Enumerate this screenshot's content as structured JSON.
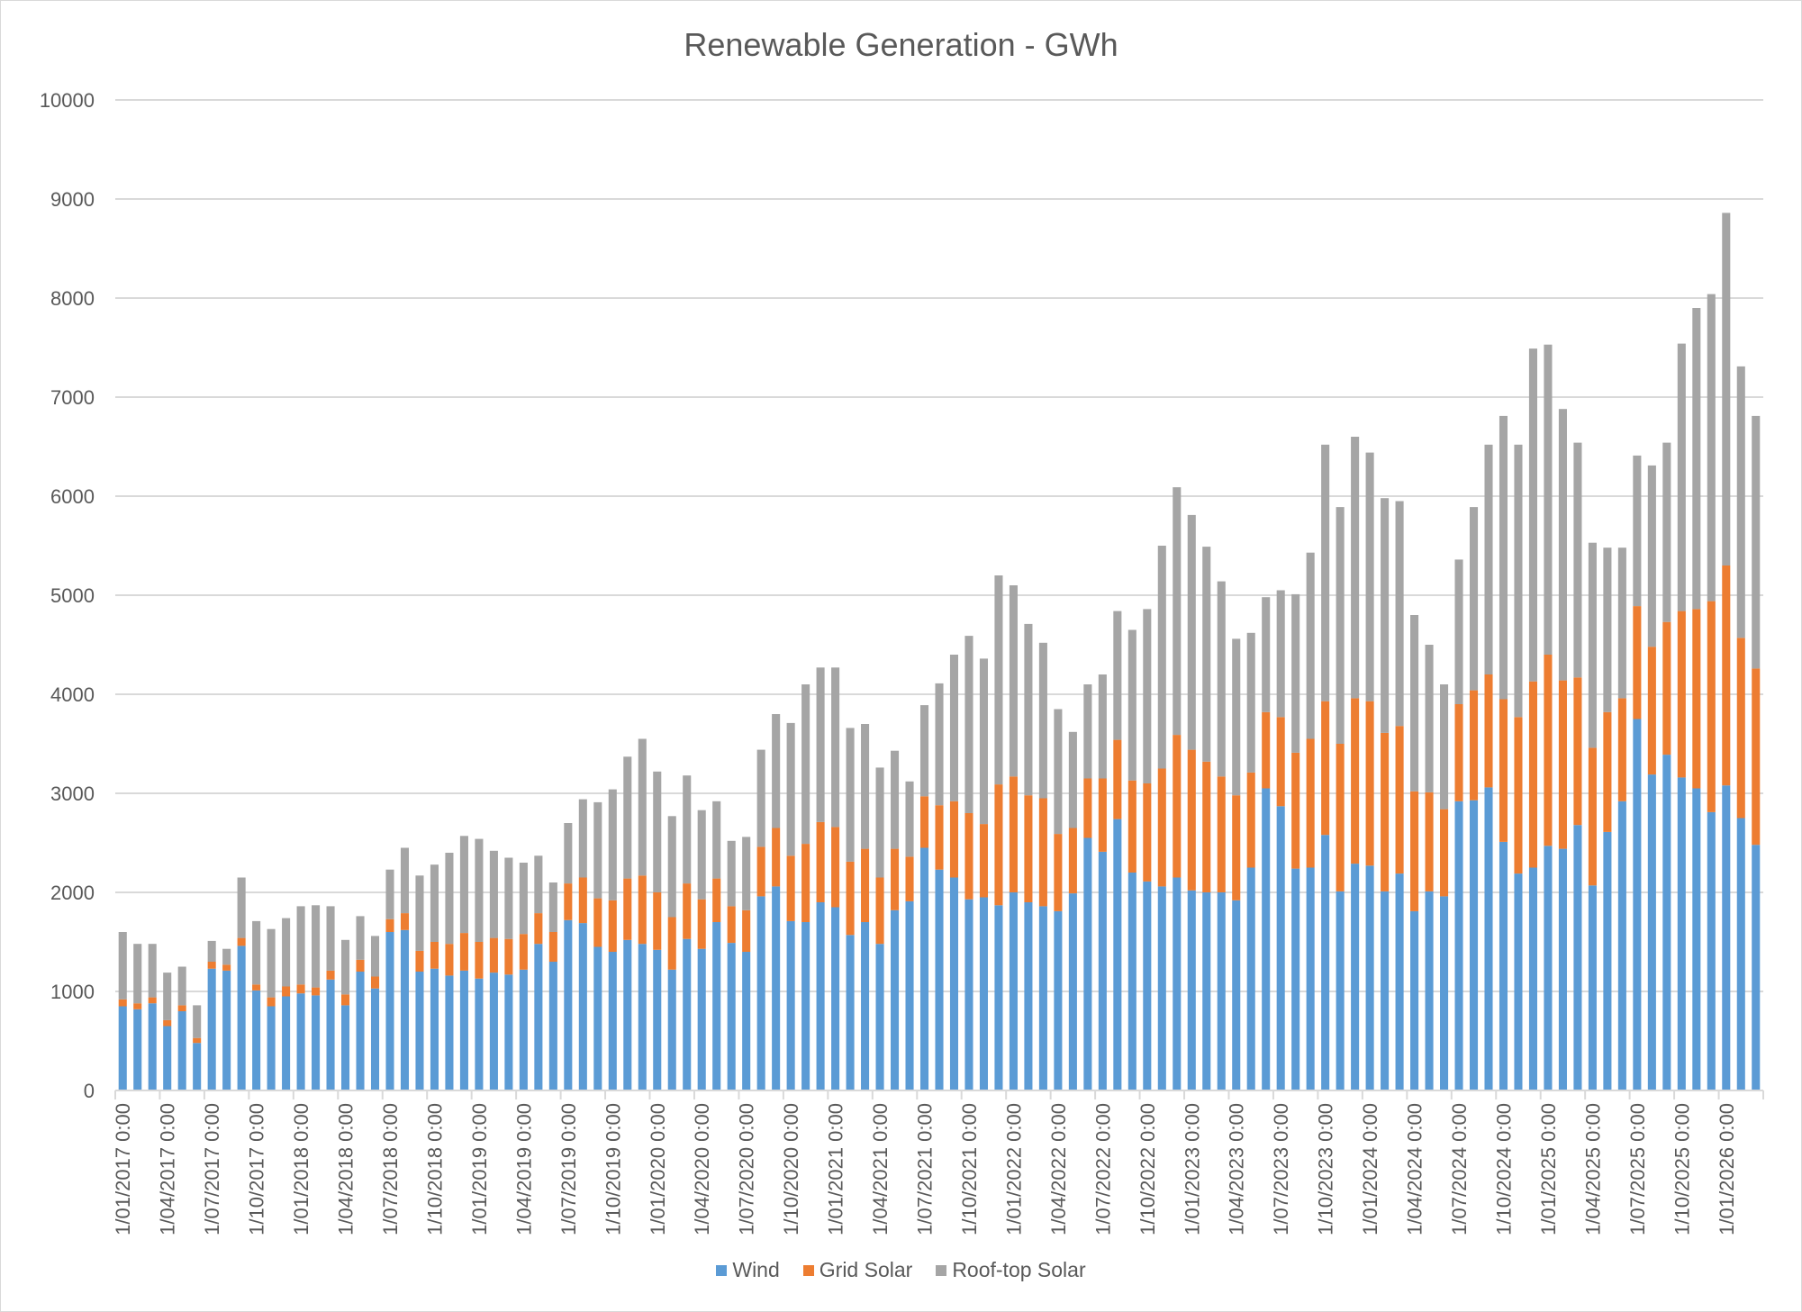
{
  "chart_data": {
    "type": "bar",
    "stacked": true,
    "title": "Renewable Generation - GWh",
    "xlabel": "",
    "ylabel": "",
    "ylim": [
      0,
      10000
    ],
    "yticks": [
      0,
      1000,
      2000,
      3000,
      4000,
      5000,
      6000,
      7000,
      8000,
      9000,
      10000
    ],
    "grid": true,
    "legend_position": "bottom",
    "x_tick_labels": [
      "1/01/2017 0:00",
      "1/04/2017 0:00",
      "1/07/2017 0:00",
      "1/10/2017 0:00",
      "1/01/2018 0:00",
      "1/04/2018 0:00",
      "1/07/2018 0:00",
      "1/10/2018 0:00",
      "1/01/2019 0:00",
      "1/04/2019 0:00",
      "1/07/2019 0:00",
      "1/10/2019 0:00",
      "1/01/2020 0:00",
      "1/04/2020 0:00",
      "1/07/2020 0:00",
      "1/10/2020 0:00",
      "1/01/2021 0:00",
      "1/04/2021 0:00",
      "1/07/2021 0:00",
      "1/10/2021 0:00",
      "1/01/2022 0:00",
      "1/04/2022 0:00",
      "1/07/2022 0:00",
      "1/10/2022 0:00",
      "1/01/2023 0:00",
      "1/04/2023 0:00",
      "1/07/2023 0:00",
      "1/10/2023 0:00",
      "1/01/2024 0:00",
      "1/04/2024 0:00",
      "1/07/2024 0:00",
      "1/10/2024 0:00",
      "1/01/2025 0:00",
      "1/04/2025 0:00",
      "1/07/2025 0:00",
      "1/10/2025 0:00",
      "1/01/2026 0:00"
    ],
    "x_tick_every": 3,
    "colors": {
      "Wind": "#5b9bd5",
      "Grid Solar": "#ed7d31",
      "Roof-top Solar": "#a5a5a5"
    },
    "series": [
      {
        "name": "Wind",
        "values": [
          850,
          820,
          880,
          650,
          800,
          480,
          1230,
          1210,
          1460,
          1010,
          850,
          950,
          980,
          960,
          1120,
          860,
          1200,
          1030,
          1600,
          1620,
          1200,
          1230,
          1160,
          1210,
          1130,
          1190,
          1170,
          1220,
          1480,
          1300,
          1720,
          1690,
          1450,
          1400,
          1520,
          1480,
          1420,
          1220,
          1530,
          1430,
          1700,
          1490,
          1400,
          1960,
          2060,
          1710,
          1700,
          1900,
          1850,
          1570,
          1700,
          1480,
          1820,
          1910,
          2450,
          2230,
          2150,
          1930,
          1950,
          1870,
          2000,
          1900,
          1860,
          1810,
          1990,
          2550,
          2410,
          2740,
          2200,
          2110,
          2060,
          2150,
          2020,
          2000,
          2000,
          1920,
          2250,
          3050,
          2870,
          2240,
          2250,
          2580,
          2010,
          2290,
          2270,
          2010,
          2190,
          1810,
          2010,
          1960,
          2920,
          2930,
          3060,
          2510,
          2190,
          2250,
          2470,
          2440,
          2680,
          2070,
          2610,
          2920,
          3750,
          3190,
          3390,
          3160,
          3050,
          2810,
          3080,
          2750,
          2480
        ]
      },
      {
        "name": "Grid Solar",
        "values": [
          70,
          60,
          60,
          60,
          60,
          50,
          70,
          60,
          80,
          60,
          90,
          100,
          90,
          80,
          90,
          110,
          120,
          120,
          130,
          170,
          210,
          270,
          320,
          380,
          370,
          350,
          360,
          360,
          310,
          300,
          370,
          460,
          490,
          520,
          620,
          690,
          580,
          530,
          560,
          500,
          440,
          370,
          420,
          500,
          590,
          660,
          790,
          810,
          810,
          740,
          740,
          670,
          620,
          450,
          520,
          650,
          770,
          870,
          740,
          1220,
          1170,
          1080,
          1090,
          780,
          660,
          600,
          740,
          800,
          930,
          990,
          1190,
          1440,
          1420,
          1320,
          1170,
          1060,
          960,
          770,
          900,
          1170,
          1300,
          1350,
          1490,
          1670,
          1660,
          1600,
          1490,
          1210,
          1000,
          880,
          980,
          1110,
          1140,
          1440,
          1580,
          1880,
          1930,
          1700,
          1490,
          1390,
          1210,
          1040,
          1140,
          1290,
          1340,
          1680,
          1810,
          2130,
          2220,
          1820,
          1780
        ]
      },
      {
        "name": "Roof-top Solar",
        "values": [
          680,
          600,
          540,
          480,
          390,
          330,
          210,
          160,
          610,
          640,
          690,
          690,
          790,
          830,
          650,
          550,
          440,
          410,
          500,
          660,
          760,
          780,
          920,
          980,
          1040,
          880,
          820,
          720,
          580,
          500,
          610,
          790,
          970,
          1120,
          1230,
          1380,
          1220,
          1020,
          1090,
          900,
          780,
          660,
          740,
          980,
          1150,
          1340,
          1610,
          1560,
          1610,
          1350,
          1260,
          1110,
          990,
          760,
          920,
          1230,
          1480,
          1790,
          1670,
          2110,
          1930,
          1730,
          1570,
          1260,
          970,
          950,
          1050,
          1300,
          1520,
          1760,
          2250,
          2500,
          2370,
          2170,
          1970,
          1580,
          1410,
          1160,
          1280,
          1600,
          1880,
          2590,
          2390,
          2640,
          2510,
          2370,
          2270,
          1780,
          1490,
          1260,
          1460,
          1850,
          2320,
          2860,
          2750,
          3360,
          3130,
          2740,
          2370,
          2070,
          1660,
          1520,
          1520,
          1830,
          1810,
          2700,
          3040,
          3100,
          3560,
          2740,
          2550
        ]
      }
    ]
  }
}
